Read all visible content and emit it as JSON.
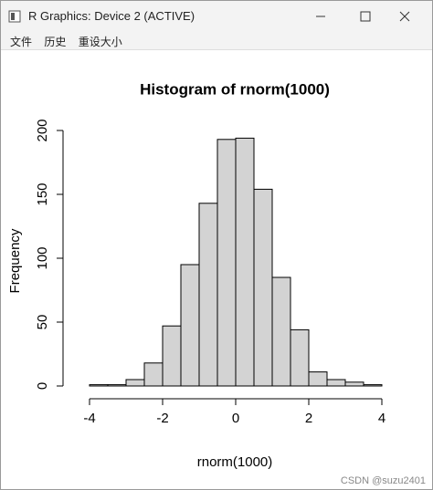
{
  "window": {
    "title": "R Graphics: Device 2 (ACTIVE)",
    "menu": [
      "文件",
      "历史",
      "重设大小"
    ]
  },
  "watermark": "CSDN @suzu2401",
  "chart_data": {
    "type": "histogram",
    "title": "Histogram of rnorm(1000)",
    "x_label": "rnorm(1000)",
    "y_label": "Frequency",
    "bins": [
      -4,
      -3.5,
      -3,
      -2.5,
      -2,
      -1.5,
      -1,
      -0.5,
      0,
      0.5,
      1,
      1.5,
      2,
      2.5,
      3,
      3.5,
      4
    ],
    "values": [
      1,
      1,
      5,
      18,
      47,
      95,
      143,
      193,
      194,
      154,
      85,
      44,
      11,
      5,
      3,
      1
    ],
    "color": "#d3d3d3",
    "xlim": [
      -4,
      4
    ],
    "xticks": [
      -4,
      -2,
      0,
      2,
      4
    ],
    "ylim": [
      0,
      200
    ],
    "yticks": [
      0,
      50,
      100,
      150,
      200
    ]
  }
}
